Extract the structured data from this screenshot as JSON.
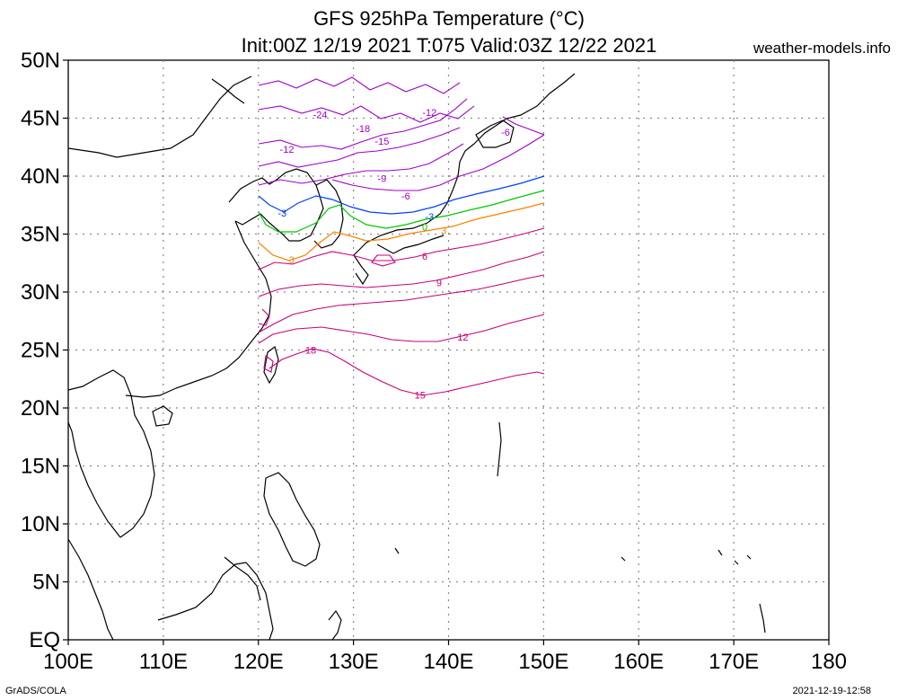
{
  "title": "GFS 925hPa Temperature (°C)",
  "subtitle": "Init:00Z 12/19 2021 T:075 Valid:03Z 12/22 2021",
  "site": "weather-models.info",
  "footer_left": "GrADS/COLA",
  "footer_right": "2021-12-19-12:58",
  "axes": {
    "x_ticks": [
      "100E",
      "110E",
      "120E",
      "130E",
      "140E",
      "150E",
      "160E",
      "170E",
      "180"
    ],
    "y_ticks": [
      "50N",
      "45N",
      "40N",
      "35N",
      "30N",
      "25N",
      "20N",
      "15N",
      "10N",
      "5N",
      "EQ"
    ],
    "lon_range": [
      100,
      180
    ],
    "lat_range": [
      0,
      50
    ],
    "grid": true
  },
  "contour_colors": {
    "cold": "#a000c8",
    "zero": "#00c800",
    "minus3": "#0040ff",
    "plus3": "#ff8000",
    "warm": "#c8007a"
  },
  "contour_labels": [
    {
      "text": "-24",
      "lon": 126.5,
      "lat": 45.0,
      "color": "#a000c8"
    },
    {
      "text": "-12",
      "lon": 138.0,
      "lat": 45.2,
      "color": "#a000c8"
    },
    {
      "text": "-18",
      "lon": 131.0,
      "lat": 43.8,
      "color": "#a000c8"
    },
    {
      "text": "-15",
      "lon": 133.0,
      "lat": 42.7,
      "color": "#a000c8"
    },
    {
      "text": "-12",
      "lon": 123.0,
      "lat": 42.0,
      "color": "#a000c8"
    },
    {
      "text": "-9",
      "lon": 133.0,
      "lat": 39.5,
      "color": "#a000c8"
    },
    {
      "text": "-6",
      "lon": 135.5,
      "lat": 38.0,
      "color": "#a000c8"
    },
    {
      "text": "-6",
      "lon": 146.0,
      "lat": 43.5,
      "color": "#a000c8"
    },
    {
      "text": "-3",
      "lon": 122.5,
      "lat": 36.5,
      "color": "#0040ff"
    },
    {
      "text": "-3",
      "lon": 138.0,
      "lat": 36.2,
      "color": "#0040ff"
    },
    {
      "text": "0",
      "lon": 137.5,
      "lat": 35.3,
      "color": "#00c800"
    },
    {
      "text": "3",
      "lon": 139.5,
      "lat": 35.0,
      "color": "#ff8000"
    },
    {
      "text": "3",
      "lon": 123.5,
      "lat": 32.5,
      "color": "#ff8000"
    },
    {
      "text": "6",
      "lon": 137.5,
      "lat": 32.8,
      "color": "#c8007a"
    },
    {
      "text": "9",
      "lon": 139.0,
      "lat": 30.5,
      "color": "#c8007a"
    },
    {
      "text": "12",
      "lon": 141.5,
      "lat": 25.8,
      "color": "#c8007a"
    },
    {
      "text": "18",
      "lon": 125.5,
      "lat": 24.7,
      "color": "#c8007a"
    },
    {
      "text": "15",
      "lon": 137.0,
      "lat": 20.8,
      "color": "#c8007a"
    }
  ]
}
